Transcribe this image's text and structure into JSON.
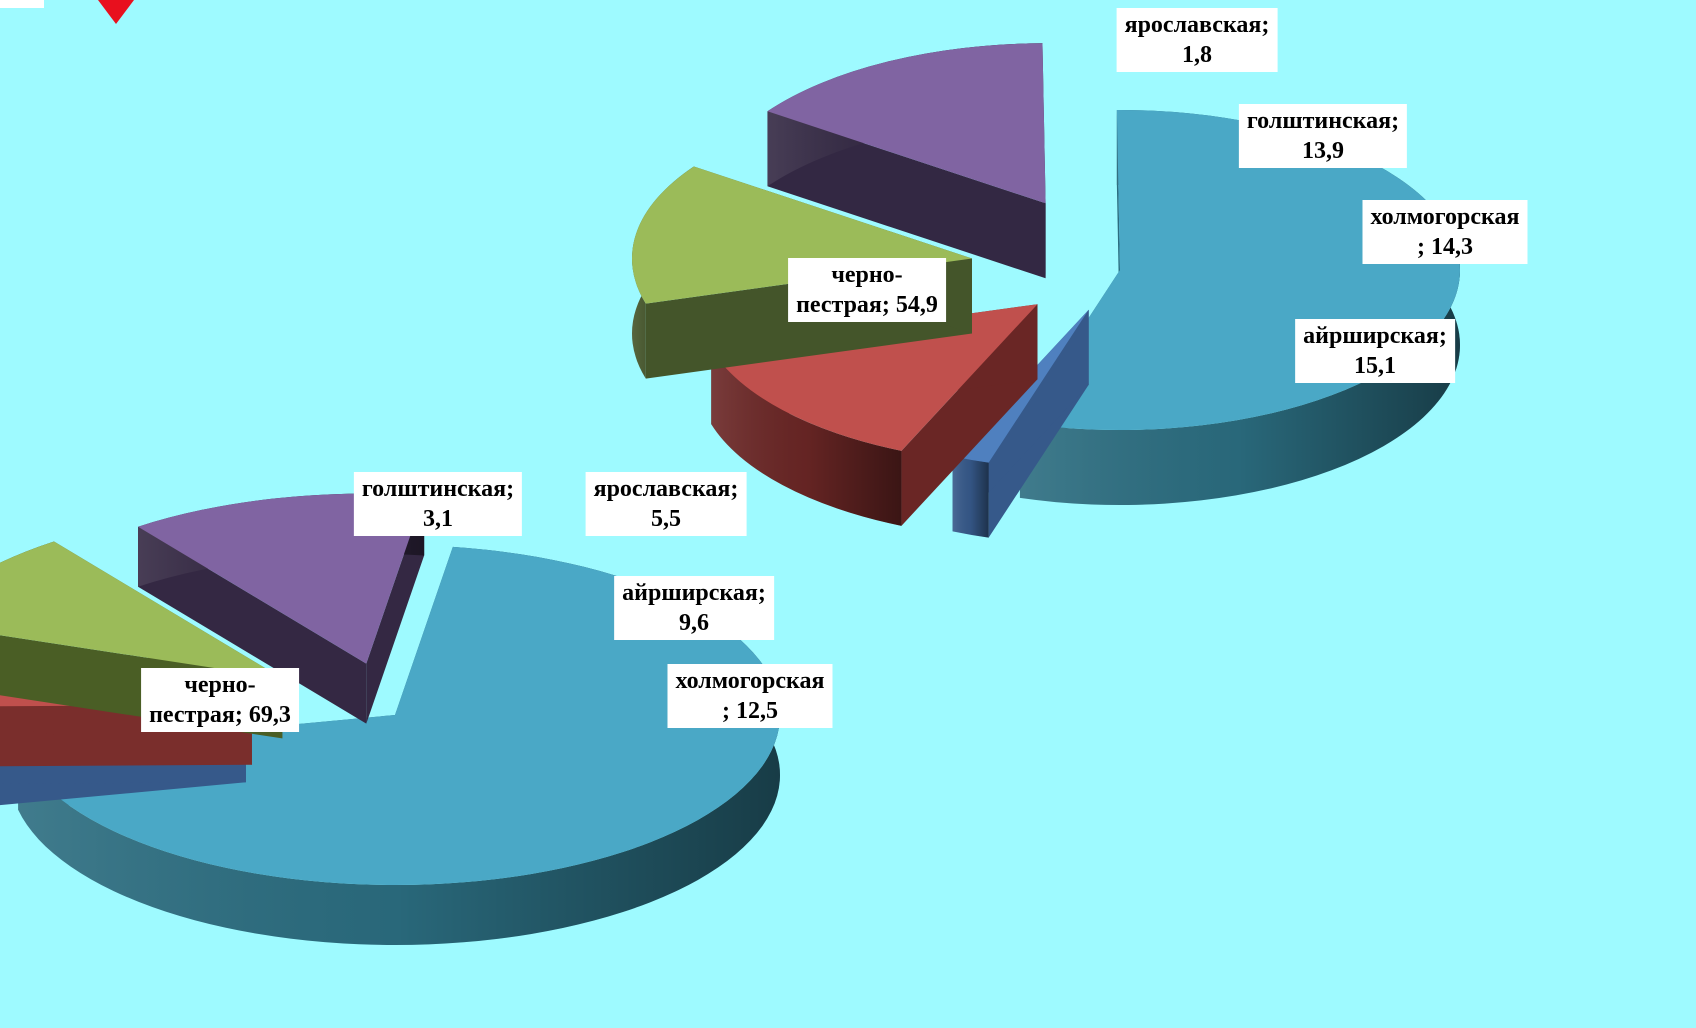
{
  "header": {
    "title_fragment": ""
  },
  "colors": {
    "background": "#9efaff",
    "marker": "#e8101e"
  },
  "chart_data": [
    {
      "type": "pie",
      "title": "",
      "style": "3d-exploded",
      "slices": [
        {
          "label": "черно-пестрая",
          "value": 69.3,
          "label_text": [
            "черно-",
            "пестрая; 69,3"
          ],
          "color": "#4aa8c6",
          "side": "#2b6d80"
        },
        {
          "label": "голштинская",
          "value": 3.1,
          "label_text": [
            "голштинская;",
            "3,1"
          ],
          "color": "#4f80bf",
          "side": "#36598a"
        },
        {
          "label": "ярославская",
          "value": 5.5,
          "label_text": [
            "ярославская;",
            "5,5"
          ],
          "color": "#c0504d",
          "side": "#7a2e2c"
        },
        {
          "label": "айрширская",
          "value": 9.6,
          "label_text": [
            "айрширская;",
            "9,6"
          ],
          "color": "#9bbb59",
          "side": "#4a5e25"
        },
        {
          "label": "холмогорская",
          "value": 12.5,
          "label_text": [
            "холмогорская",
            "; 12,5"
          ],
          "color": "#8064a2",
          "side": "#342843"
        }
      ]
    },
    {
      "type": "pie",
      "title": "",
      "style": "3d-exploded",
      "slices": [
        {
          "label": "черно-пестрая",
          "value": 54.9,
          "label_text": [
            "черно-",
            "пестрая; 54,9"
          ],
          "color": "#4aa8c6",
          "side": "#2b6d80"
        },
        {
          "label": "ярославская",
          "value": 1.8,
          "label_text": [
            "ярославская;",
            "1,8"
          ],
          "color": "#4f80bf",
          "side": "#36598a"
        },
        {
          "label": "голштинская",
          "value": 13.9,
          "label_text": [
            "голштинская;",
            "13,9"
          ],
          "color": "#c0504d",
          "side": "#6a2625"
        },
        {
          "label": "холмогорская",
          "value": 14.3,
          "label_text": [
            "холмогорская",
            "; 14,3"
          ],
          "color": "#9bbb59",
          "side": "#44552a"
        },
        {
          "label": "айрширская",
          "value": 15.1,
          "label_text": [
            "айрширская;",
            "15,1"
          ],
          "color": "#8064a2",
          "side": "#332843"
        }
      ]
    }
  ]
}
